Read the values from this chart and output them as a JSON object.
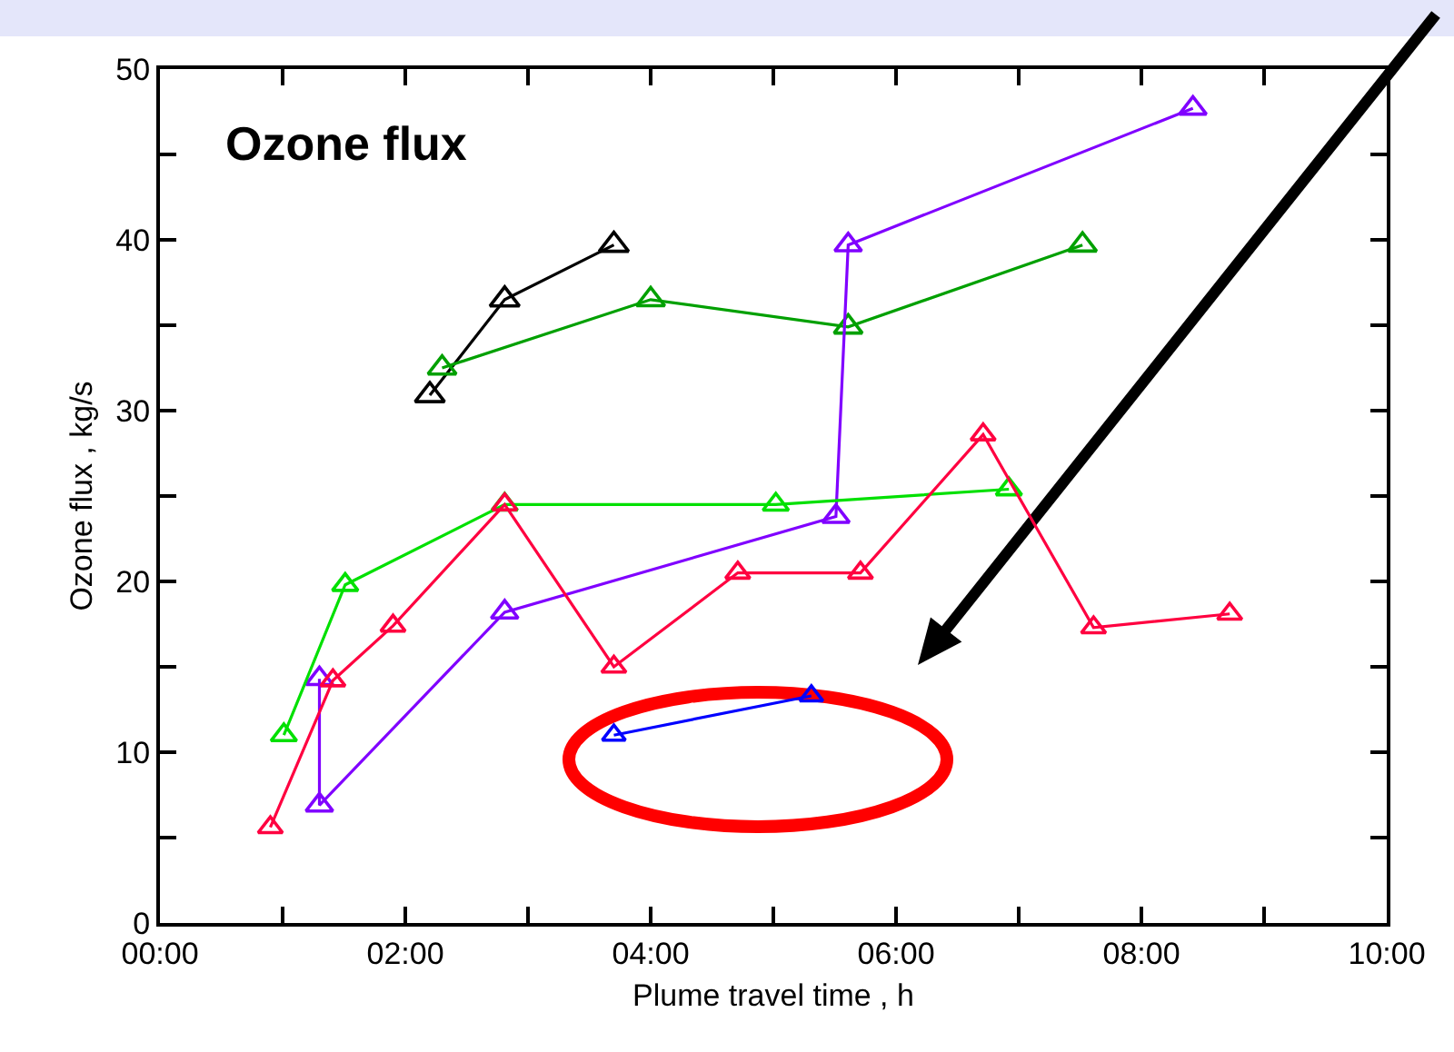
{
  "chart_data": {
    "type": "line",
    "title": "Ozone flux",
    "xlabel": "Plume travel time , h",
    "ylabel": "Ozone flux , kg/s",
    "xlim": [
      0,
      10
    ],
    "ylim": [
      0,
      50
    ],
    "xticks": [
      {
        "value": 0,
        "label": "00:00"
      },
      {
        "value": 1,
        "label": null
      },
      {
        "value": 2,
        "label": "02:00"
      },
      {
        "value": 3,
        "label": null
      },
      {
        "value": 4,
        "label": "04:00"
      },
      {
        "value": 5,
        "label": null
      },
      {
        "value": 6,
        "label": "06:00"
      },
      {
        "value": 7,
        "label": null
      },
      {
        "value": 8,
        "label": "08:00"
      },
      {
        "value": 9,
        "label": null
      },
      {
        "value": 10,
        "label": "10:00"
      }
    ],
    "yticks": [
      0,
      {
        "value": 5,
        "label": null
      },
      10,
      {
        "value": 15,
        "label": null
      },
      20,
      {
        "value": 25,
        "label": null
      },
      30,
      {
        "value": 35,
        "label": null
      },
      40,
      {
        "value": 45,
        "label": null
      },
      50
    ],
    "marker": "triangle",
    "line_style": "solid",
    "grid": false,
    "series": [
      {
        "color": "#000000",
        "x": [
          2.2,
          2.81,
          3.7
        ],
        "values": [
          30.9,
          36.5,
          39.7
        ]
      },
      {
        "color": "#00a000",
        "x": [
          2.3,
          4.0,
          5.61,
          7.52
        ],
        "values": [
          32.5,
          36.5,
          34.9,
          39.7
        ]
      },
      {
        "color": "#8000ff",
        "x": [
          1.3,
          1.3,
          2.81,
          5.51,
          5.61,
          8.42
        ],
        "values": [
          14.3,
          6.9,
          18.2,
          23.8,
          39.7,
          47.7
        ]
      },
      {
        "color": "#00e000",
        "x": [
          1.01,
          1.51,
          2.81,
          5.02,
          6.92
        ],
        "values": [
          11.0,
          19.8,
          24.5,
          24.5,
          25.4
        ]
      },
      {
        "color": "#ff0040",
        "x": [
          0.9,
          1.41,
          1.9,
          2.81,
          3.7,
          4.71,
          5.71,
          6.71,
          7.61,
          8.72
        ],
        "values": [
          5.6,
          14.2,
          17.4,
          24.5,
          15.0,
          20.5,
          20.5,
          28.6,
          17.3,
          18.1
        ]
      },
      {
        "color": "#0000ff",
        "x": [
          3.7,
          5.31
        ],
        "values": [
          11.0,
          13.3
        ]
      }
    ]
  }
}
